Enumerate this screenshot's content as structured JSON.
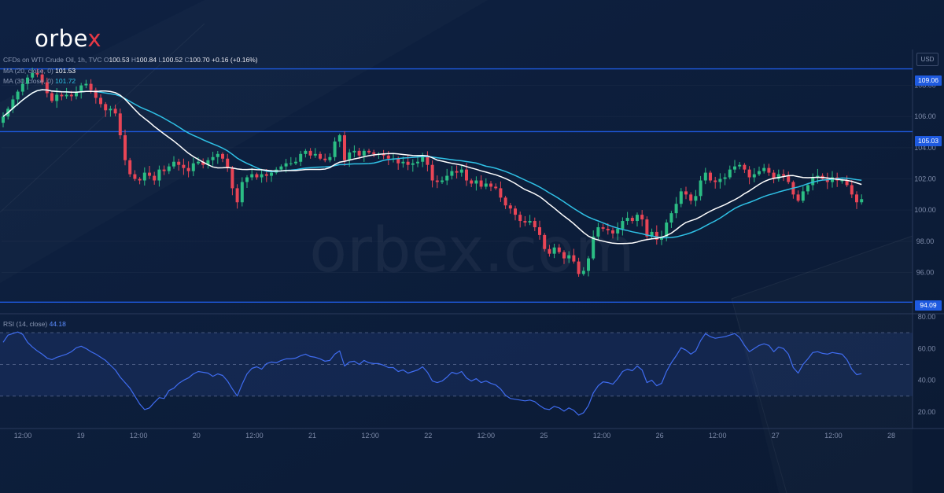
{
  "brand": {
    "logo_text": "orbe",
    "logo_accent": "x",
    "watermark": "orbex.com"
  },
  "colors": {
    "background": "#0d1e3a",
    "up": "#2bbd84",
    "down": "#e84556",
    "ma20": "#ffffff",
    "ma30": "#2fc1e6",
    "rsi": "#3f6cf0",
    "level_line": "#1e5ae0"
  },
  "legend": {
    "symbol": "CFDs on WTI Crude Oil, 1h, TVC",
    "open_label": "O",
    "open": "100.53",
    "high_label": "H",
    "high": "100.84",
    "low_label": "L",
    "low": "100.52",
    "close_label": "C",
    "close": "100.70",
    "change": "+0.16 (+0.16%)",
    "ma20_label": "MA (20, close, 0)",
    "ma20_value": "101.53",
    "ma30_label": "MA (30, close, 0)",
    "ma30_value": "101.72",
    "rsi_label": "RSI (14, close)",
    "rsi_value": "44.18"
  },
  "currency": "USD",
  "chart_data": [
    {
      "type": "candlestick",
      "series_name": "CFDs on WTI Crude Oil, 1h",
      "y_ticks": [
        "108.00",
        "106.00",
        "104.00",
        "102.00",
        "100.00",
        "98.00",
        "96.00"
      ],
      "ylim": [
        93.4,
        110.3
      ],
      "x_ticks": [
        "12:00",
        "19",
        "12:00",
        "20",
        "12:00",
        "21",
        "12:00",
        "22",
        "12:00",
        "25",
        "12:00",
        "26",
        "12:00",
        "27",
        "12:00",
        "28"
      ],
      "closes": [
        106,
        106.5,
        107.1,
        107.6,
        108.1,
        108.5,
        108.8,
        108.7,
        108.2,
        107.5,
        107,
        107.4,
        107.3,
        107.4,
        107.3,
        107.6,
        108,
        108.1,
        107.7,
        107.2,
        106.8,
        106.4,
        106.5,
        106.2,
        104.8,
        103.2,
        102.3,
        102,
        101.9,
        102.4,
        102.2,
        101.9,
        102.6,
        102.5,
        102.8,
        103.1,
        102.9,
        102.7,
        102.5,
        103,
        103.1,
        102.9,
        103.2,
        103.4,
        103.6,
        103.3,
        102.7,
        101.4,
        100.5,
        101.8,
        102.1,
        102.3,
        102.1,
        102.3,
        102.2,
        102.4,
        102.6,
        102.8,
        103,
        103,
        103.1,
        103.6,
        103.8,
        103.5,
        103.6,
        103.3,
        103.2,
        103.4,
        104.4,
        104.8,
        103.2,
        103.7,
        103.8,
        103.5,
        103.8,
        103.7,
        103.6,
        103.6,
        103.5,
        103.3,
        103.3,
        103,
        103.1,
        102.9,
        103,
        103.1,
        103.4,
        102.9,
        101.9,
        101.8,
        101.9,
        102.2,
        102.5,
        102.4,
        102.6,
        101.9,
        101.7,
        101.9,
        101.5,
        101.7,
        101.5,
        101.4,
        100.8,
        100.3,
        100.1,
        99.7,
        99.3,
        99.2,
        99.3,
        98.9,
        98.4,
        97.5,
        97.2,
        97.6,
        97.3,
        96.9,
        97.1,
        96.7,
        95.9,
        96.1,
        96.9,
        98.3,
        98.9,
        98.8,
        98.7,
        98.5,
        98.8,
        99.3,
        99.5,
        99.3,
        99.7,
        99.4,
        98.3,
        98.6,
        98.1,
        98.3,
        99.2,
        99.8,
        100.4,
        101.2,
        101,
        100.6,
        100.9,
        101.9,
        102.4,
        101.9,
        101.8,
        102,
        102.1,
        102.6,
        102.8,
        102.9,
        102.6,
        102.1,
        102.3,
        102.5,
        102.7,
        102.4,
        102,
        102.3,
        102.2,
        101.8,
        101,
        100.6,
        101.2,
        101.6,
        102.1,
        102.2,
        102,
        101.8,
        102.1,
        101.9,
        101.9,
        101.6,
        101,
        100.5,
        100.7
      ],
      "levels": [
        109.06,
        105.03,
        94.09
      ],
      "level_labels": [
        "109.06",
        "105.03",
        "94.09"
      ],
      "ma20_name": "MA (20, close, 0)",
      "ma30_name": "MA (30, close, 0)"
    },
    {
      "type": "line",
      "series_name": "RSI (14, close)",
      "y_ticks": [
        "80.00",
        "60.00",
        "40.00",
        "20.00"
      ],
      "ylim": [
        11,
        82
      ],
      "bands": [
        70,
        50,
        30
      ],
      "values": [
        64,
        68.5,
        69.5,
        70.5,
        69,
        64,
        61,
        58.5,
        56.5,
        54,
        53,
        54.5,
        55.5,
        56.5,
        58,
        60.5,
        61.5,
        60,
        58,
        56.5,
        54.5,
        52.5,
        49.5,
        46.5,
        42,
        38.5,
        35,
        30,
        25,
        21.5,
        22.5,
        26,
        29,
        28.5,
        33.5,
        35,
        38,
        40,
        41.5,
        44,
        45.5,
        45,
        44.5,
        42.5,
        44,
        43,
        39.5,
        34.5,
        30,
        37.5,
        44,
        47.5,
        48.5,
        47,
        50.5,
        51.5,
        51,
        52.5,
        53.5,
        53.5,
        54,
        55.5,
        56.5,
        55,
        54.5,
        53.5,
        52,
        52.5,
        56.5,
        58.5,
        49,
        51.5,
        52,
        50,
        52.5,
        51,
        50.5,
        50.5,
        49.5,
        48,
        48,
        45.5,
        46.5,
        44.5,
        45.5,
        46.5,
        48.5,
        45,
        39.5,
        38.5,
        39.5,
        42,
        45,
        44,
        45.5,
        41.5,
        39.5,
        41,
        38.5,
        39.5,
        38,
        37,
        34.5,
        30.5,
        28.5,
        28,
        27.5,
        27,
        27.5,
        26.5,
        24,
        22,
        21.5,
        23.5,
        22.5,
        20.5,
        22.5,
        21,
        18,
        19.5,
        24,
        32,
        36.5,
        39,
        38.5,
        37.5,
        41,
        45.5,
        47,
        46,
        49,
        46.5,
        38.5,
        40,
        36.5,
        38,
        45.5,
        51,
        55.5,
        60.5,
        59,
        56.5,
        58.5,
        65,
        69.5,
        67.5,
        66.5,
        67,
        67.5,
        68.5,
        69.5,
        67,
        62,
        58,
        60,
        62,
        63,
        62,
        58,
        61,
        60,
        56.5,
        48,
        44.5,
        50,
        53.5,
        57.5,
        58,
        57,
        56.5,
        57.5,
        57,
        56.5,
        53,
        47,
        43.5,
        44.18
      ]
    }
  ]
}
